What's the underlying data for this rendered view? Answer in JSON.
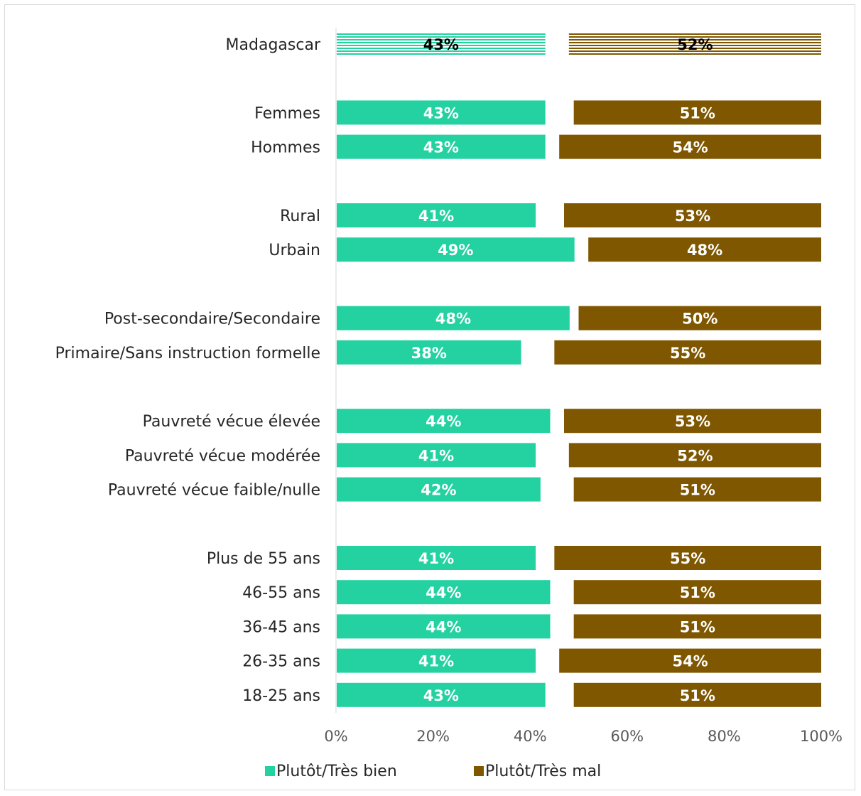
{
  "chart_data": {
    "type": "bar",
    "orientation": "horizontal",
    "stacked_layout": "left series from 0%, right series aligned to 100%",
    "categories": [
      "Madagascar",
      "Femmes",
      "Hommes",
      "Rural",
      "Urbain",
      "Post-secondaire/Secondaire",
      "Primaire/Sans instruction formelle",
      "Pauvreté vécue élevée",
      "Pauvreté vécue modérée",
      "Pauvreté vécue faible/nulle",
      "Plus de 55 ans",
      "46-55 ans",
      "36-45 ans",
      "26-35 ans",
      "18-25 ans"
    ],
    "series": [
      {
        "name": "Plutôt/Très bien",
        "color": "#23d1a1",
        "values": [
          43,
          43,
          43,
          41,
          49,
          48,
          38,
          44,
          41,
          42,
          41,
          44,
          44,
          41,
          43
        ],
        "labels": [
          "43%",
          "43%",
          "43%",
          "41%",
          "49%",
          "48%",
          "38%",
          "44%",
          "41%",
          "42%",
          "41%",
          "44%",
          "44%",
          "41%",
          "43%"
        ]
      },
      {
        "name": "Plutôt/Très mal",
        "color": "#7f5700",
        "values": [
          52,
          51,
          54,
          53,
          48,
          50,
          55,
          53,
          52,
          51,
          55,
          51,
          51,
          54,
          51
        ],
        "labels": [
          "52%",
          "51%",
          "54%",
          "53%",
          "48%",
          "50%",
          "55%",
          "53%",
          "52%",
          "51%",
          "55%",
          "51%",
          "51%",
          "54%",
          "51%"
        ]
      }
    ],
    "highlighted_category": "Madagascar",
    "highlight_style": "horizontal stripes",
    "xlim": [
      0,
      100
    ],
    "x_ticks": [
      "0%",
      "20%",
      "40%",
      "60%",
      "80%",
      "100%"
    ],
    "legend_position": "bottom",
    "grid": false
  }
}
